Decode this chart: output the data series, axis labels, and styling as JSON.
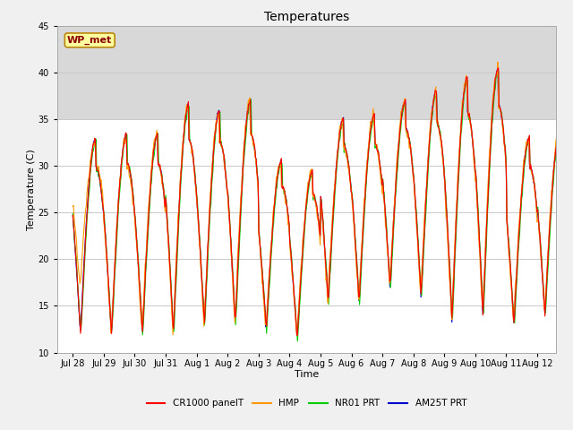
{
  "title": "Temperatures",
  "xlabel": "Time",
  "ylabel": "Temperature (C)",
  "ylim": [
    10,
    45
  ],
  "station_label": "WP_met",
  "shaded_region": [
    35,
    45
  ],
  "legend_entries": [
    "CR1000 panelT",
    "HMP",
    "NR01 PRT",
    "AM25T PRT"
  ],
  "line_colors": [
    "#ff0000",
    "#ff9900",
    "#00cc00",
    "#0000cc"
  ],
  "x_tick_labels": [
    "Jul 28",
    "Jul 29",
    "Jul 30",
    "Jul 31",
    "Aug 1",
    "Aug 2",
    "Aug 3",
    "Aug 4",
    "Aug 5",
    "Aug 6",
    "Aug 7",
    "Aug 8",
    "Aug 9",
    "Aug 10",
    "Aug 11",
    "Aug 12"
  ],
  "daily_peaks": [
    33,
    33.5,
    33.5,
    36.5,
    36,
    37,
    30.5,
    29.5,
    35,
    35.5,
    37,
    38,
    39.5,
    40.5,
    33,
    34
  ],
  "daily_mins": [
    12,
    12,
    12,
    12,
    13,
    13,
    12.5,
    11.5,
    15.5,
    15.5,
    17,
    16,
    13.5,
    14,
    13,
    14
  ]
}
